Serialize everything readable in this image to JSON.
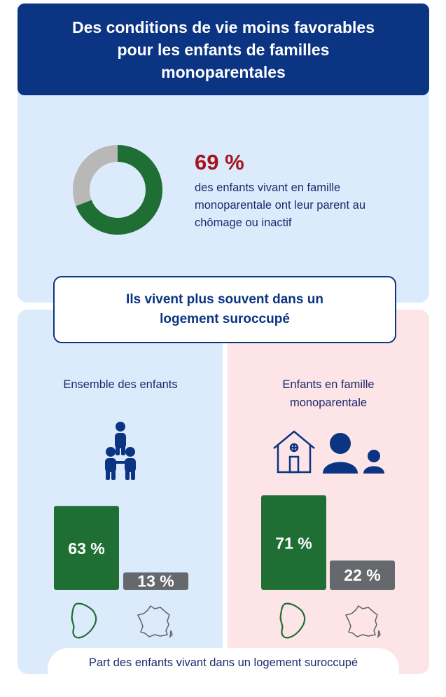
{
  "header": {
    "title": "Des conditions de vie moins favorables pour les enfants de familles monoparentales"
  },
  "stat": {
    "value": "69 %",
    "description": "des enfants vivant en famille monoparentale ont leur parent au chômage ou inactif"
  },
  "banner": {
    "text": "Ils vivent plus souvent dans un logement suroccupé"
  },
  "groups": [
    {
      "title": "Ensemble des enfants",
      "icon": "children-group-icon"
    },
    {
      "title": "Enfants en famille monoparentale",
      "icon": "house-parent-child-icon"
    }
  ],
  "footer": {
    "text": "Part des enfants vivant dans un logement suroccupé"
  },
  "colors": {
    "guyane": "#1f6f35",
    "france": "#65686c",
    "donut_fill": "#1f6f35",
    "donut_rest": "#b8b8b8",
    "navy": "#0b3483",
    "stat_red": "#a5141e"
  },
  "chart_data": [
    {
      "type": "pie",
      "values": [
        69,
        31
      ],
      "highlight": "69 %"
    },
    {
      "type": "bar",
      "categories": [
        "Ensemble des enfants",
        "Enfants en famille monoparentale"
      ],
      "series": [
        {
          "icon": "guyane-map-icon",
          "values": [
            63,
            71
          ],
          "labels": [
            "63 %",
            "71 %"
          ]
        },
        {
          "icon": "france-map-icon",
          "values": [
            13,
            22
          ],
          "labels": [
            "13 %",
            "22 %"
          ]
        }
      ],
      "ylim": [
        0,
        100
      ]
    }
  ]
}
